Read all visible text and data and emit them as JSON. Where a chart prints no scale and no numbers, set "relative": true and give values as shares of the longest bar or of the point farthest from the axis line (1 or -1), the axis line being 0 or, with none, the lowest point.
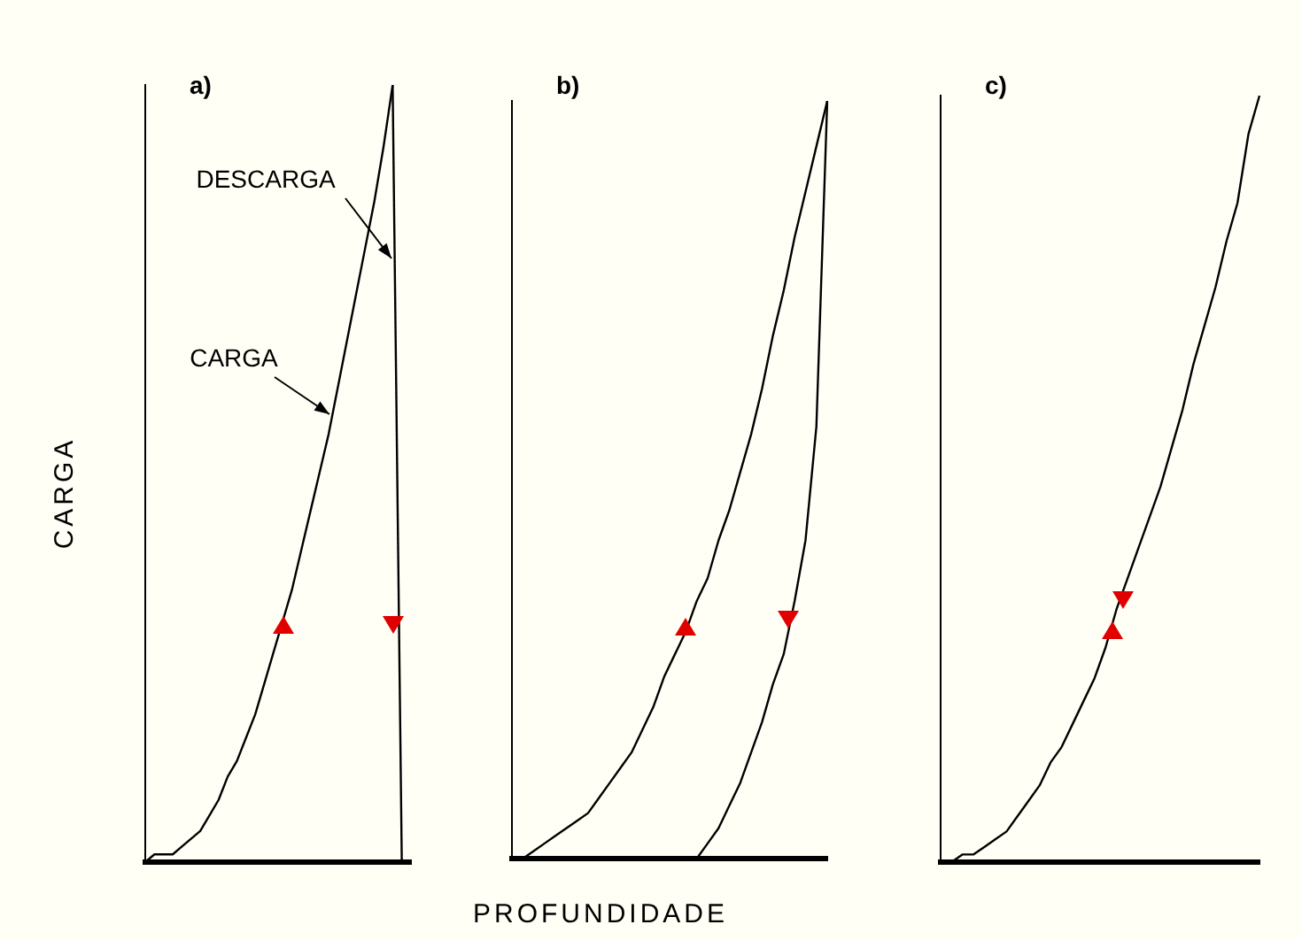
{
  "chart_data": [
    {
      "type": "line",
      "title": "a)",
      "ylabel": "CARGA",
      "relative": true,
      "tick_labels": false,
      "grid": false,
      "legend": false,
      "marker": "none",
      "line_style": "solid",
      "annotations": [
        "DESCARGA",
        "CARGA"
      ],
      "categories": [
        null,
        null,
        null,
        null,
        null,
        null,
        null,
        null,
        null,
        null,
        null,
        null,
        null,
        null,
        null,
        null,
        null,
        null,
        null,
        null,
        null,
        null,
        null,
        null,
        null,
        null,
        null,
        null,
        null,
        null
      ],
      "series": [
        {
          "color": "#000000",
          "values": [
            0,
            0.01,
            0.01,
            0.01,
            0.02,
            0.03,
            0.04,
            0.06,
            0.08,
            0.11,
            0.13,
            0.16,
            0.19,
            0.23,
            0.27,
            0.31,
            0.35,
            0.4,
            0.45,
            0.5,
            0.55,
            0.61,
            0.67,
            0.73,
            0.79,
            0.85,
            0.92,
            1,
            null,
            null
          ]
        },
        {
          "color": "#000000",
          "values": [
            null,
            null,
            null,
            null,
            null,
            null,
            null,
            null,
            null,
            null,
            null,
            null,
            null,
            null,
            null,
            null,
            null,
            null,
            null,
            null,
            null,
            null,
            null,
            null,
            null,
            null,
            null,
            1,
            0,
            null
          ]
        }
      ]
    },
    {
      "type": "line",
      "title": "b)",
      "xlabel": "PROFUNDIDADE",
      "relative": true,
      "tick_labels": false,
      "grid": false,
      "legend": false,
      "marker": "none",
      "line_style": "solid",
      "categories": [
        null,
        null,
        null,
        null,
        null,
        null,
        null,
        null,
        null,
        null,
        null,
        null,
        null,
        null,
        null,
        null,
        null,
        null,
        null,
        null,
        null,
        null,
        null,
        null,
        null,
        null,
        null,
        null,
        null,
        null
      ],
      "series": [
        {
          "color": "#000000",
          "values": [
            0,
            0,
            0.01,
            0.02,
            0.03,
            0.04,
            0.05,
            0.06,
            0.08,
            0.1,
            0.12,
            0.14,
            0.17,
            0.2,
            0.24,
            0.27,
            0.3,
            0.34,
            0.37,
            0.42,
            0.46,
            0.51,
            0.56,
            0.62,
            0.69,
            0.75,
            0.82,
            0.88,
            0.94,
            1
          ]
        },
        {
          "color": "#000000",
          "values": [
            null,
            null,
            null,
            null,
            null,
            null,
            null,
            null,
            null,
            null,
            null,
            null,
            null,
            null,
            null,
            null,
            null,
            0,
            0.02,
            0.04,
            0.07,
            0.1,
            0.14,
            0.18,
            0.23,
            0.27,
            0.34,
            0.42,
            0.57,
            1
          ]
        }
      ]
    },
    {
      "type": "line",
      "title": "c)",
      "relative": true,
      "tick_labels": false,
      "grid": false,
      "legend": false,
      "marker": "none",
      "line_style": "solid",
      "categories": [
        null,
        null,
        null,
        null,
        null,
        null,
        null,
        null,
        null,
        null,
        null,
        null,
        null,
        null,
        null,
        null,
        null,
        null,
        null,
        null,
        null,
        null,
        null,
        null,
        null,
        null,
        null,
        null,
        null,
        null
      ],
      "series": [
        {
          "color": "#000000",
          "values": [
            0,
            0,
            0.01,
            0.01,
            0.02,
            0.03,
            0.04,
            0.06,
            0.08,
            0.1,
            0.13,
            0.15,
            0.18,
            0.21,
            0.24,
            0.28,
            0.33,
            0.37,
            0.41,
            0.45,
            0.49,
            0.54,
            0.59,
            0.65,
            0.7,
            0.75,
            0.81,
            0.86,
            0.95,
            1
          ]
        }
      ]
    }
  ]
}
